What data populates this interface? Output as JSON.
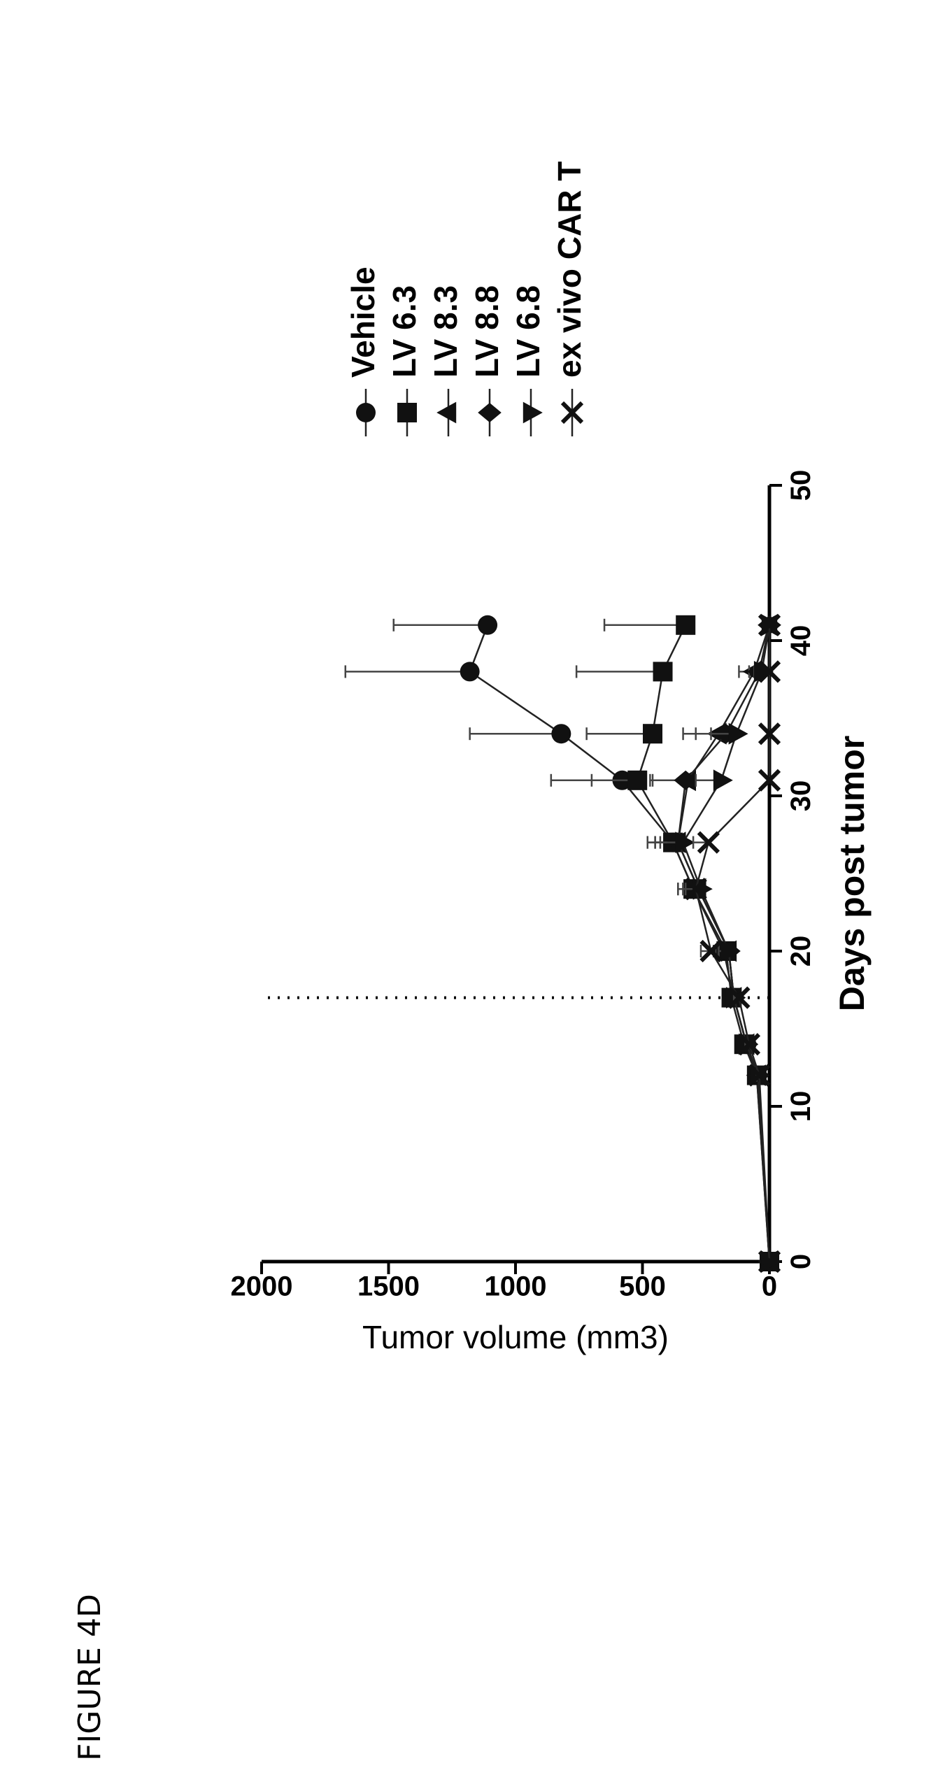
{
  "figure_label": "FIGURE 4D",
  "chart_data": {
    "type": "line",
    "title": "",
    "xlabel": "Days post tumor",
    "ylabel": "Tumor volume (mm3)",
    "xlim": [
      0,
      50
    ],
    "ylim": [
      0,
      2000
    ],
    "x_ticks": [
      0,
      10,
      20,
      30,
      40,
      50
    ],
    "y_ticks": [
      0,
      500,
      1000,
      1500,
      2000
    ],
    "x_tick_labels": [
      "0",
      "10",
      "20",
      "30",
      "40",
      "50"
    ],
    "y_tick_labels": [
      "0",
      "500",
      "1000",
      "1500",
      "2000"
    ],
    "grid": false,
    "legend_position": "right",
    "dotted_reference_x": 17,
    "series": [
      {
        "name": "Vehicle",
        "marker": "circle",
        "x": [
          0,
          12,
          14,
          17,
          20,
          24,
          27,
          31,
          34,
          38,
          41
        ],
        "y": [
          0,
          50,
          90,
          140,
          180,
          300,
          380,
          580,
          820,
          1180,
          1110
        ],
        "err": [
          0,
          10,
          15,
          25,
          40,
          60,
          100,
          280,
          360,
          490,
          370
        ]
      },
      {
        "name": "LV 6.3",
        "marker": "square",
        "x": [
          0,
          12,
          14,
          17,
          20,
          24,
          27,
          31,
          34,
          38,
          41
        ],
        "y": [
          0,
          50,
          100,
          150,
          170,
          300,
          380,
          520,
          460,
          420,
          330
        ],
        "err": [
          0,
          10,
          15,
          25,
          40,
          60,
          100,
          180,
          260,
          340,
          320
        ]
      },
      {
        "name": "LV 8.3",
        "marker": "triangle-up",
        "x": [
          0,
          12,
          14,
          17,
          20,
          24,
          27,
          31,
          34,
          38,
          41
        ],
        "y": [
          0,
          45,
          90,
          140,
          160,
          280,
          360,
          320,
          200,
          60,
          0
        ],
        "err": [
          0,
          10,
          15,
          25,
          40,
          60,
          90,
          150,
          140,
          60,
          0
        ]
      },
      {
        "name": "LV 8.8",
        "marker": "diamond",
        "x": [
          0,
          12,
          14,
          17,
          20,
          24,
          27,
          31,
          34,
          38,
          41
        ],
        "y": [
          0,
          45,
          90,
          140,
          160,
          280,
          360,
          330,
          170,
          40,
          0
        ],
        "err": [
          0,
          10,
          15,
          25,
          40,
          60,
          90,
          130,
          120,
          40,
          0
        ]
      },
      {
        "name": "LV 6.8",
        "marker": "triangle-down",
        "x": [
          0,
          12,
          14,
          17,
          20,
          24,
          27,
          31,
          34,
          38,
          41
        ],
        "y": [
          0,
          45,
          90,
          140,
          160,
          270,
          340,
          190,
          130,
          30,
          0
        ],
        "err": [
          0,
          10,
          15,
          25,
          40,
          60,
          90,
          100,
          100,
          30,
          0
        ]
      },
      {
        "name": "ex vivo CAR T",
        "marker": "x",
        "x": [
          0,
          12,
          14,
          17,
          20,
          24,
          27,
          31,
          34,
          38,
          41
        ],
        "y": [
          0,
          40,
          80,
          120,
          230,
          290,
          240,
          0,
          0,
          0,
          0
        ],
        "err": [
          0,
          10,
          15,
          20,
          40,
          50,
          60,
          0,
          0,
          0,
          0
        ]
      }
    ]
  }
}
